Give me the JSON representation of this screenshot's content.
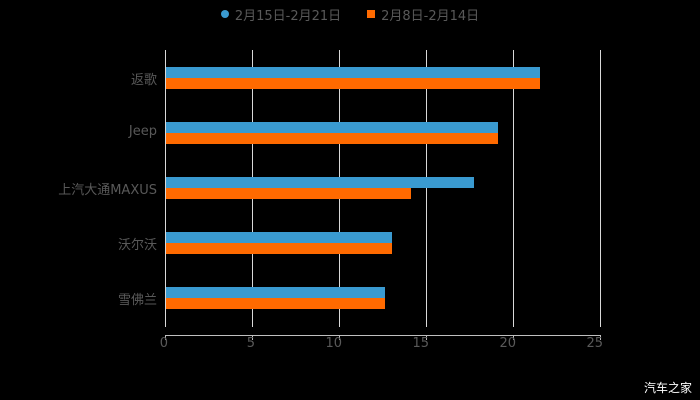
{
  "chart_data": {
    "type": "bar",
    "orientation": "horizontal",
    "title": "",
    "categories": [
      "返歌",
      "Jeep",
      "上汽大通MAXUS",
      "沃尔沃",
      "雪佛兰"
    ],
    "series": [
      {
        "name": "2月15日-2月21日",
        "color": "#3a9ad0",
        "values": [
          21.5,
          19.1,
          17.7,
          13.0,
          12.6
        ]
      },
      {
        "name": "2月8日-2月14日",
        "color": "#ff6a00",
        "values": [
          21.5,
          19.1,
          14.1,
          13.0,
          12.6
        ]
      }
    ],
    "xlabel": "",
    "ylabel": "",
    "xlim": [
      0,
      25
    ],
    "xticks": [
      "0",
      "5",
      "10",
      "15",
      "20",
      "25"
    ],
    "grid": true,
    "legend_position": "top"
  },
  "legend": {
    "series1": "2月15日-2月21日",
    "series2": "2月8日-2月14日"
  },
  "watermark": "汽车之家"
}
